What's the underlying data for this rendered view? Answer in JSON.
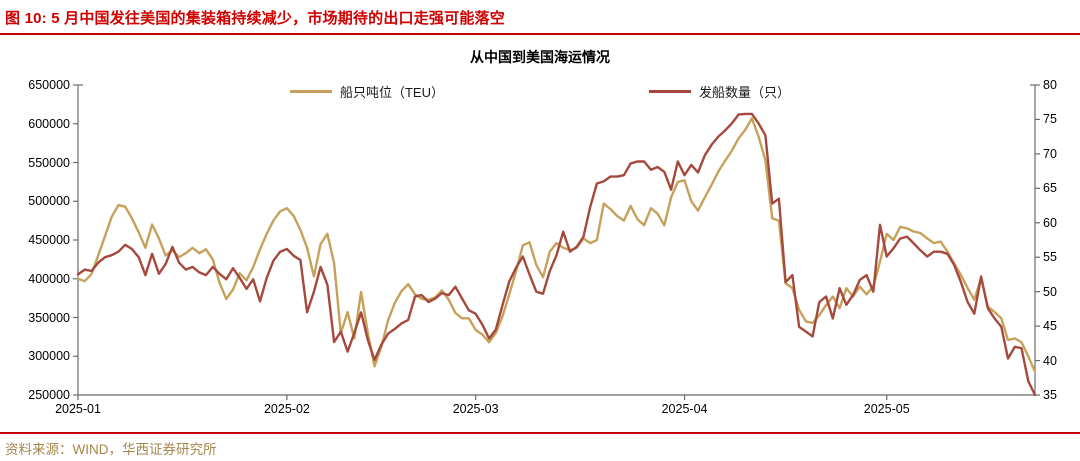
{
  "header": {
    "title": "图 10: 5 月中国发往美国的集装箱持续减少，市场期待的出口走强可能落空"
  },
  "footer": {
    "source": "资料来源：WIND，华西证券研究所"
  },
  "colors": {
    "title_red": "#d00000",
    "rule_red": "#c70000",
    "line_gold": "#c7a15c",
    "line_red": "#a5493d",
    "source_text": "#a6874b",
    "axis_gray": "#6b6b6b"
  },
  "chart_data": {
    "type": "line",
    "title": "从中国到美国海运情况",
    "legend_position": "top",
    "grid": false,
    "y_left": {
      "min": 250000,
      "max": 650000,
      "step": 50000
    },
    "y_right": {
      "min": 35,
      "max": 80,
      "step": 5
    },
    "x_ticks": [
      {
        "label": "2025-01",
        "index": 0
      },
      {
        "label": "2025-02",
        "index": 31
      },
      {
        "label": "2025-03",
        "index": 59
      },
      {
        "label": "2025-04",
        "index": 90
      },
      {
        "label": "2025-05",
        "index": 120
      }
    ],
    "series": [
      {
        "name": "船只吨位（TEU）",
        "axis": "left",
        "color": "#c7a15c",
        "values": [
          400000,
          397000,
          406000,
          430000,
          455000,
          480000,
          495000,
          493000,
          478000,
          460000,
          440000,
          470000,
          452000,
          430000,
          437000,
          428000,
          433000,
          440000,
          433000,
          438000,
          425000,
          395000,
          374000,
          386000,
          407000,
          398000,
          415000,
          438000,
          458000,
          475000,
          487000,
          491000,
          481000,
          463000,
          440000,
          403000,
          445000,
          458000,
          420000,
          330000,
          357000,
          323000,
          383000,
          330000,
          287000,
          312000,
          346000,
          369000,
          384000,
          393000,
          380000,
          374000,
          373000,
          376000,
          385000,
          373000,
          356000,
          349000,
          349000,
          334000,
          328000,
          318000,
          330000,
          352000,
          380000,
          410000,
          443000,
          447000,
          418000,
          402000,
          435000,
          446000,
          440000,
          437000,
          440000,
          452000,
          446000,
          450000,
          497000,
          490000,
          481000,
          475000,
          494000,
          477000,
          469000,
          491000,
          484000,
          469000,
          505000,
          525000,
          527000,
          500000,
          488000,
          505000,
          521000,
          538000,
          552000,
          565000,
          581000,
          592000,
          607000,
          583000,
          553000,
          478000,
          475000,
          394000,
          388000,
          360000,
          345000,
          343000,
          353000,
          366000,
          377000,
          362000,
          388000,
          377000,
          390000,
          380000,
          390000,
          422000,
          458000,
          450000,
          467000,
          465000,
          461000,
          459000,
          452000,
          446000,
          448000,
          435000,
          420000,
          405000,
          388000,
          373000,
          401000,
          364000,
          357000,
          349000,
          321000,
          323000,
          318000,
          300000,
          280000
        ]
      },
      {
        "name": "发船数量（只）",
        "axis": "right",
        "color": "#a5493d",
        "values": [
          52.5,
          53.2,
          53.0,
          54.2,
          55.0,
          55.3,
          55.8,
          56.8,
          56.2,
          55.0,
          52.4,
          55.5,
          52.6,
          54.0,
          56.5,
          54.2,
          53.2,
          53.6,
          52.8,
          52.4,
          53.6,
          52.6,
          51.8,
          53.4,
          52.0,
          50.4,
          51.8,
          48.6,
          52.0,
          54.5,
          55.8,
          56.2,
          55.2,
          54.6,
          47.0,
          50.0,
          53.6,
          51.0,
          42.7,
          44.2,
          41.3,
          44.0,
          47.0,
          43.0,
          40.1,
          42.3,
          43.9,
          44.6,
          45.4,
          45.9,
          49.3,
          49.5,
          48.5,
          49.0,
          49.8,
          49.5,
          50.7,
          49.0,
          47.3,
          46.8,
          45.2,
          43.2,
          44.5,
          48.1,
          51.5,
          53.5,
          55.1,
          52.5,
          50.0,
          49.7,
          53.0,
          55.3,
          58.7,
          55.8,
          56.5,
          58.0,
          62.3,
          65.7,
          66.0,
          66.7,
          66.7,
          66.9,
          68.6,
          68.9,
          68.9,
          67.7,
          68.1,
          67.4,
          64.8,
          68.9,
          66.9,
          68.4,
          67.3,
          69.8,
          71.3,
          72.5,
          73.4,
          74.4,
          75.7,
          75.8,
          75.8,
          74.4,
          72.7,
          62.8,
          63.5,
          51.4,
          52.4,
          44.9,
          44.2,
          43.5,
          48.5,
          49.3,
          46.1,
          50.5,
          48.1,
          49.5,
          51.7,
          52.4,
          50.0,
          59.7,
          55.1,
          56.3,
          57.7,
          58.0,
          57.0,
          56.0,
          55.1,
          55.8,
          55.8,
          55.5,
          53.9,
          51.4,
          48.5,
          46.8,
          52.2,
          47.6,
          46.1,
          44.9,
          40.3,
          42.0,
          41.8,
          37.0,
          35.0
        ]
      }
    ]
  }
}
